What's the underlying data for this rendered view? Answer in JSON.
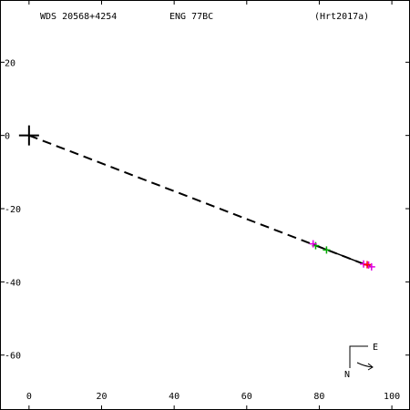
{
  "header": {
    "wds_id": "WDS 20568+4254",
    "discoverer": "ENG  77BC",
    "reference": "(Hrt2017a)"
  },
  "compass": {
    "east_label": "E",
    "north_label": "N"
  },
  "chart_data": {
    "type": "scatter",
    "xlim": [
      -8,
      105
    ],
    "ylim": [
      -75,
      37
    ],
    "x_ticks": [
      0,
      20,
      40,
      60,
      80,
      100
    ],
    "y_ticks": [
      20,
      0,
      -20,
      -40,
      -60
    ],
    "x_tick_labels": [
      "0",
      "20",
      "40",
      "60",
      "80",
      "100"
    ],
    "y_tick_labels": [
      "20",
      "0",
      "-20",
      "-40",
      "-60"
    ],
    "grid": false,
    "primary_position": [
      0,
      0
    ],
    "orbit_dashed_line": [
      [
        0,
        0
      ],
      [
        92.5,
        -35.2
      ]
    ],
    "orbit_solid_line": [
      [
        78.5,
        -29.8
      ],
      [
        94.5,
        -36.0
      ]
    ],
    "series": [
      {
        "marker": "green-cross",
        "color": "#00aa00",
        "points": [
          [
            79,
            -30.1
          ],
          [
            82,
            -31.3
          ]
        ]
      },
      {
        "marker": "magenta-cross",
        "color": "#e000e0",
        "points": [
          [
            78.3,
            -29.6
          ],
          [
            92.2,
            -35.1
          ],
          [
            93.6,
            -35.4
          ],
          [
            94.4,
            -35.9
          ]
        ]
      },
      {
        "marker": "red-cross",
        "color": "#ff0000",
        "points": [
          [
            93.2,
            -35.3
          ]
        ]
      }
    ]
  }
}
